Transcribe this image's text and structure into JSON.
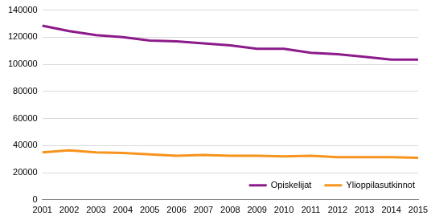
{
  "chart_data": {
    "type": "line",
    "categories": [
      "2001",
      "2002",
      "2003",
      "2004",
      "2005",
      "2006",
      "2007",
      "2008",
      "2009",
      "2010",
      "2011",
      "2012",
      "2013",
      "2014",
      "2015"
    ],
    "series": [
      {
        "name": "Opiskelijat",
        "color": "#8c1a8a",
        "values": [
          128500,
          124500,
          121500,
          120000,
          117500,
          117000,
          115500,
          114000,
          111500,
          111500,
          108500,
          107500,
          105500,
          103500,
          103500
        ]
      },
      {
        "name": "Ylioppilasutkinnot",
        "color": "#f7941d",
        "values": [
          35000,
          36500,
          35000,
          34500,
          33500,
          32500,
          33000,
          32500,
          32500,
          32000,
          32500,
          31500,
          31500,
          31500,
          31000
        ]
      }
    ],
    "ylim": [
      0,
      140000
    ],
    "yticks": [
      0,
      20000,
      40000,
      60000,
      80000,
      100000,
      120000,
      140000
    ],
    "grid": true,
    "legend": "lower right"
  }
}
